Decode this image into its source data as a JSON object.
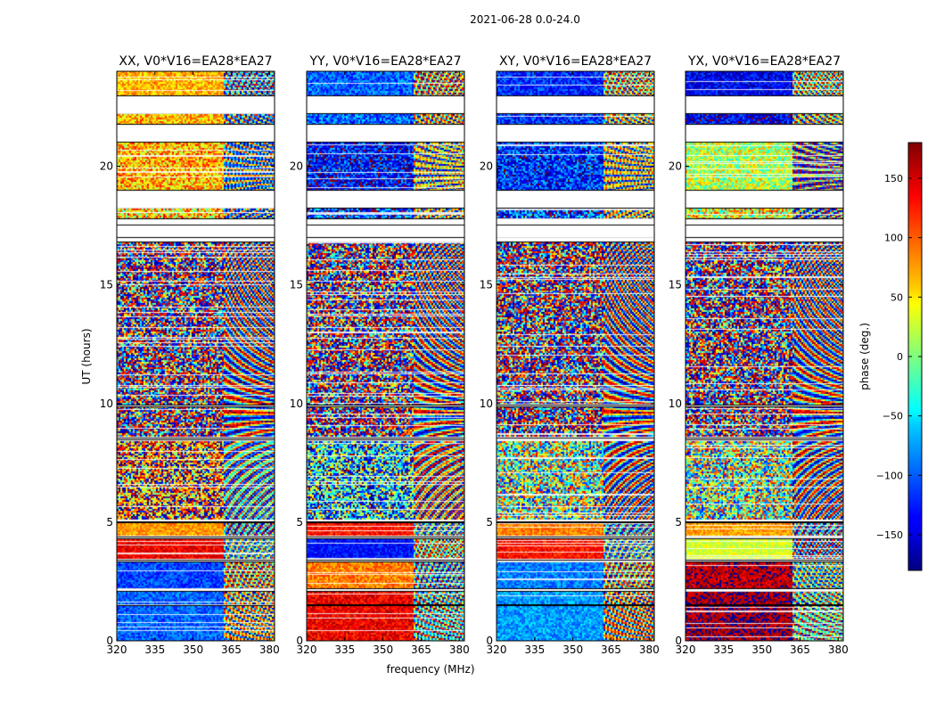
{
  "figure": {
    "suptitle": "2021-06-28 0.0-24.0",
    "ylabel": "UT (hours)",
    "xlabel": "frequency (MHz)"
  },
  "chart_data": {
    "type": "heatmap",
    "x_range_mhz": [
      320,
      382
    ],
    "y_range_hours": [
      0,
      24
    ],
    "xticks": [
      320,
      335,
      350,
      365,
      380
    ],
    "yticks": [
      0,
      5,
      10,
      15,
      20
    ],
    "panels": [
      {
        "title": "XX, V0*V16=EA28*EA27",
        "pol": "XX"
      },
      {
        "title": "YY, V0*V16=EA28*EA27",
        "pol": "YY"
      },
      {
        "title": "XY, V0*V16=EA28*EA27",
        "pol": "XY"
      },
      {
        "title": "YX, V0*V16=EA28*EA27",
        "pol": "YX"
      }
    ],
    "blank_intervals_hours": [
      [
        22.2,
        23.0
      ],
      [
        21.0,
        21.8
      ],
      [
        18.2,
        19.0
      ],
      [
        17.5,
        17.8
      ],
      [
        16.8,
        17.0
      ],
      [
        9.85,
        9.95
      ],
      [
        8.45,
        8.55
      ],
      [
        4.95,
        5.05
      ],
      [
        4.3,
        4.4
      ],
      [
        3.3,
        3.4
      ],
      [
        2.05,
        2.2
      ],
      [
        1.45,
        1.55
      ]
    ],
    "rows": [
      {
        "y0": 23.0,
        "y1": 24.0,
        "noise": 0.15,
        "phase": [
          70,
          -100,
          -120,
          -140
        ]
      },
      {
        "y0": 21.8,
        "y1": 22.2,
        "noise": 0.2,
        "phase": [
          70,
          -100,
          -120,
          -140
        ]
      },
      {
        "y0": 19.0,
        "y1": 21.0,
        "noise": 0.25,
        "phase": [
          70,
          -130,
          -120,
          20
        ]
      },
      {
        "y0": 17.8,
        "y1": 18.2,
        "noise": 0.35,
        "phase": [
          60,
          -120,
          -110,
          40
        ]
      },
      {
        "y0": 8.6,
        "y1": 16.8,
        "noise": 1.0,
        "phase": [
          0,
          0,
          0,
          0
        ]
      },
      {
        "y0": 5.1,
        "y1": 8.4,
        "noise": 0.55,
        "phase": [
          110,
          -60,
          0,
          0
        ]
      },
      {
        "y0": 4.45,
        "y1": 4.95,
        "noise": 0.1,
        "phase": [
          80,
          130,
          90,
          80
        ]
      },
      {
        "y0": 3.45,
        "y1": 4.3,
        "noise": 0.1,
        "phase": [
          140,
          -130,
          130,
          30
        ]
      },
      {
        "y0": 2.2,
        "y1": 3.3,
        "noise": 0.12,
        "phase": [
          -110,
          90,
          -90,
          160
        ]
      },
      {
        "y0": 0.0,
        "y1": 2.05,
        "noise": 0.12,
        "phase": [
          -100,
          140,
          -80,
          170
        ]
      }
    ],
    "fringe_region_mhz": [
      362,
      382
    ],
    "colorbar": {
      "label": "phase (deg.)",
      "range": [
        -180,
        180
      ],
      "ticks": [
        150,
        100,
        50,
        0,
        -50,
        -100,
        -150
      ],
      "tick_labels": [
        "150",
        "100",
        "50",
        "0",
        "−50",
        "−100",
        "−150"
      ],
      "colormap": "jet"
    }
  }
}
